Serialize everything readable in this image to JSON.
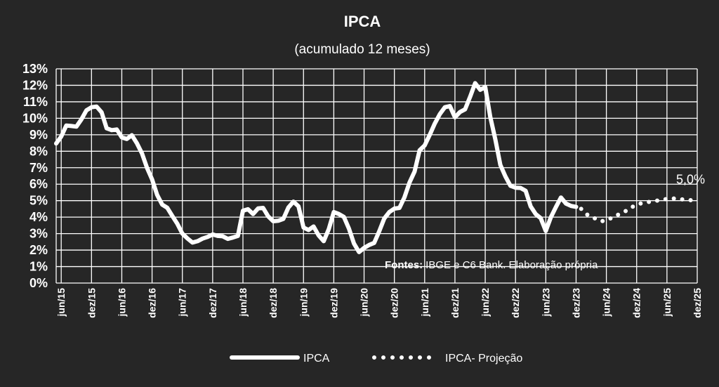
{
  "chart_data": {
    "type": "line",
    "title": "IPCA",
    "subtitle": "(acumulado 12 meses)",
    "ylim": [
      0,
      13
    ],
    "y_tick_labels": [
      "0%",
      "1%",
      "2%",
      "3%",
      "4%",
      "5%",
      "6%",
      "7%",
      "8%",
      "9%",
      "10%",
      "11%",
      "12%",
      "13%"
    ],
    "x_tick_labels": [
      "jun/15",
      "dez/15",
      "jun/16",
      "dez/16",
      "jun/17",
      "dez/17",
      "jun/18",
      "dez/18",
      "jun/19",
      "dez/19",
      "jun/20",
      "dez/20",
      "jun/21",
      "dez/21",
      "jun/22",
      "dez/22",
      "jun/23",
      "dez/23",
      "jun/24",
      "dez/24",
      "jun/25",
      "dez/25"
    ],
    "grid": true,
    "legend_position": "bottom",
    "series": [
      {
        "name": "IPCA",
        "style": "solid",
        "color": "#ffffff",
        "x": [
          "mai/15",
          "jun/15",
          "jul/15",
          "ago/15",
          "set/15",
          "out/15",
          "nov/15",
          "dez/15",
          "jan/16",
          "fev/16",
          "mar/16",
          "abr/16",
          "mai/16",
          "jun/16",
          "jul/16",
          "ago/16",
          "set/16",
          "out/16",
          "nov/16",
          "dez/16",
          "jan/17",
          "fev/17",
          "mar/17",
          "abr/17",
          "mai/17",
          "jun/17",
          "jul/17",
          "ago/17",
          "set/17",
          "out/17",
          "nov/17",
          "dez/17",
          "jan/18",
          "fev/18",
          "mar/18",
          "abr/18",
          "mai/18",
          "jun/18",
          "jul/18",
          "ago/18",
          "set/18",
          "out/18",
          "nov/18",
          "dez/18",
          "jan/19",
          "fev/19",
          "mar/19",
          "abr/19",
          "mai/19",
          "jun/19",
          "jul/19",
          "ago/19",
          "set/19",
          "out/19",
          "nov/19",
          "dez/19",
          "jan/20",
          "fev/20",
          "mar/20",
          "abr/20",
          "mai/20",
          "jun/20",
          "jul/20",
          "ago/20",
          "set/20",
          "out/20",
          "nov/20",
          "dez/20",
          "jan/21",
          "fev/21",
          "mar/21",
          "abr/21",
          "mai/21",
          "jun/21",
          "jul/21",
          "ago/21",
          "set/21",
          "out/21",
          "nov/21",
          "dez/21",
          "jan/22",
          "fev/22",
          "mar/22",
          "abr/22",
          "mai/22",
          "jun/22",
          "jul/22",
          "ago/22",
          "set/22",
          "out/22",
          "nov/22",
          "dez/22",
          "jan/23",
          "fev/23",
          "mar/23",
          "abr/23",
          "mai/23",
          "jun/23",
          "jul/23",
          "ago/23",
          "set/23",
          "out/23",
          "nov/23",
          "dez/23"
        ],
        "values": [
          8.47,
          8.89,
          9.56,
          9.53,
          9.49,
          9.93,
          10.48,
          10.67,
          10.71,
          10.36,
          9.39,
          9.28,
          9.32,
          8.84,
          8.74,
          8.97,
          8.48,
          7.87,
          6.99,
          6.29,
          5.35,
          4.76,
          4.57,
          4.08,
          3.6,
          3.0,
          2.71,
          2.46,
          2.54,
          2.7,
          2.8,
          2.95,
          2.86,
          2.84,
          2.68,
          2.76,
          2.86,
          4.39,
          4.48,
          4.19,
          4.53,
          4.56,
          4.05,
          3.75,
          3.78,
          3.89,
          4.58,
          4.94,
          4.66,
          3.37,
          3.22,
          3.43,
          2.89,
          2.54,
          3.27,
          4.31,
          4.19,
          4.01,
          3.3,
          2.4,
          1.88,
          2.13,
          2.31,
          2.44,
          3.14,
          3.92,
          4.31,
          4.52,
          4.56,
          5.2,
          6.1,
          6.76,
          8.06,
          8.35,
          8.99,
          9.68,
          10.25,
          10.67,
          10.74,
          10.06,
          10.38,
          10.54,
          11.3,
          12.13,
          11.73,
          11.89,
          10.07,
          8.73,
          7.17,
          6.47,
          5.9,
          5.79,
          5.77,
          5.6,
          4.65,
          4.18,
          3.94,
          3.16,
          3.99,
          4.61,
          5.19,
          4.82,
          4.68,
          4.62
        ]
      },
      {
        "name": "IPCA- Projeção",
        "style": "dotted",
        "color": "#ffffff",
        "x": [
          "jan/24",
          "fev/24",
          "mar/24",
          "abr/24",
          "mai/24",
          "jun/24",
          "jul/24",
          "ago/24",
          "set/24",
          "out/24",
          "nov/24",
          "dez/24",
          "jan/25",
          "fev/25",
          "mar/25",
          "abr/25",
          "mai/25",
          "jun/25",
          "jul/25",
          "ago/25",
          "set/25",
          "out/25",
          "nov/25",
          "dez/25"
        ],
        "values": [
          4.5,
          4.2,
          4.0,
          3.9,
          3.75,
          3.8,
          3.95,
          4.1,
          4.25,
          4.4,
          4.6,
          4.75,
          4.85,
          4.9,
          4.95,
          5.0,
          5.05,
          5.1,
          5.15,
          5.1,
          5.08,
          5.05,
          5.02,
          5.0
        ]
      }
    ],
    "annotations": [
      {
        "text": "5,0%",
        "x": "dez/25",
        "y": 5.0
      }
    ],
    "source_label": "Fontes:",
    "source_text": "IBGE e C6 Bank. Elaboração própria"
  }
}
